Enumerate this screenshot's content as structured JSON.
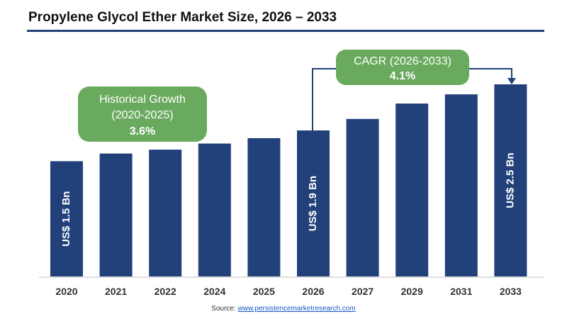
{
  "colors": {
    "bar": "#22407a",
    "callout": "#6aaa5e",
    "axis": "#bfbfbf",
    "rule": "#22407a",
    "text": "#111111",
    "bar_label": "#ffffff"
  },
  "chart_data": {
    "type": "bar",
    "title": "Propylene Glycol Ether Market Size, 2026 – 2033",
    "categories": [
      "2020",
      "2021",
      "2022",
      "2024",
      "2025",
      "2026",
      "2027",
      "2029",
      "2031",
      "2033"
    ],
    "values": [
      1.5,
      1.6,
      1.65,
      1.73,
      1.8,
      1.9,
      2.05,
      2.25,
      2.37,
      2.5
    ],
    "unit": "US$ Bn",
    "bar_labels": [
      {
        "category": "2020",
        "text": "US$ 1.5 Bn"
      },
      {
        "category": "2026",
        "text": "US$ 1.9 Bn"
      },
      {
        "category": "2033",
        "text": "US$ 2.5 Bn"
      }
    ],
    "xlabel": "",
    "ylabel": "",
    "ylim": [
      0,
      2.5
    ],
    "grid": false,
    "callouts": {
      "historical": {
        "line1": "Historical Growth",
        "line2": "(2020-2025)",
        "value": "3.6%"
      },
      "cagr": {
        "line1": "CAGR (2026-2033)",
        "value": "4.1%"
      }
    }
  },
  "source": {
    "label": "Source:",
    "link": "www.persistencemarketresearch.com"
  }
}
